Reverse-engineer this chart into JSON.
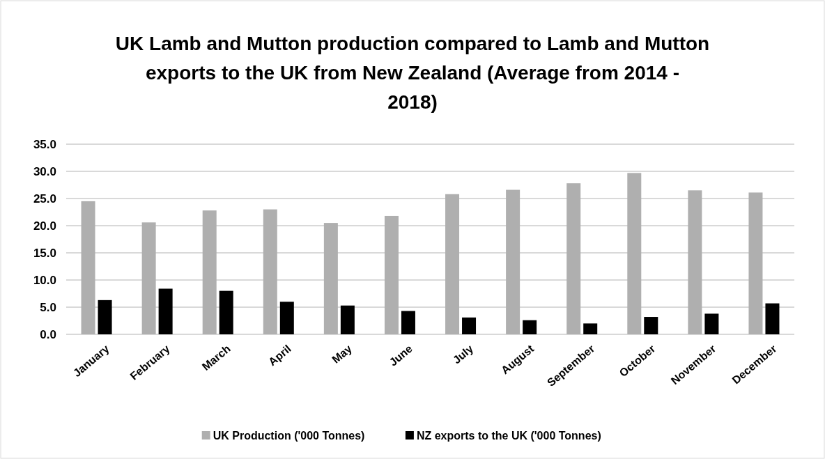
{
  "chart_data": {
    "type": "bar",
    "title": "UK Lamb and Mutton production compared to Lamb and Mutton exports to the UK from New Zealand (Average from 2014 - 2018)",
    "categories": [
      "January",
      "February",
      "March",
      "April",
      "May",
      "June",
      "July",
      "August",
      "September",
      "October",
      "November",
      "December"
    ],
    "series": [
      {
        "name": "UK Production ('000 Tonnes)",
        "color": "#afafaf",
        "values": [
          24.5,
          20.6,
          22.8,
          23.0,
          20.5,
          21.8,
          25.8,
          26.6,
          27.8,
          29.7,
          26.5,
          26.1
        ]
      },
      {
        "name": "NZ exports to the UK ('000 Tonnes)",
        "color": "#000000",
        "values": [
          6.3,
          8.4,
          8.0,
          6.0,
          5.3,
          4.3,
          3.1,
          2.6,
          2.0,
          3.2,
          3.8,
          5.7
        ]
      }
    ],
    "ylim": [
      0,
      35
    ],
    "yticks": [
      {
        "value": 0,
        "label": "0.0"
      },
      {
        "value": 5,
        "label": "5.0"
      },
      {
        "value": 10,
        "label": "10.0"
      },
      {
        "value": 15,
        "label": "15.0"
      },
      {
        "value": 20,
        "label": "20.0"
      },
      {
        "value": 25,
        "label": "25.0"
      },
      {
        "value": 30,
        "label": "30.0"
      },
      {
        "value": 35,
        "label": "35.0"
      }
    ],
    "grid": "y",
    "legend": "bottom"
  }
}
